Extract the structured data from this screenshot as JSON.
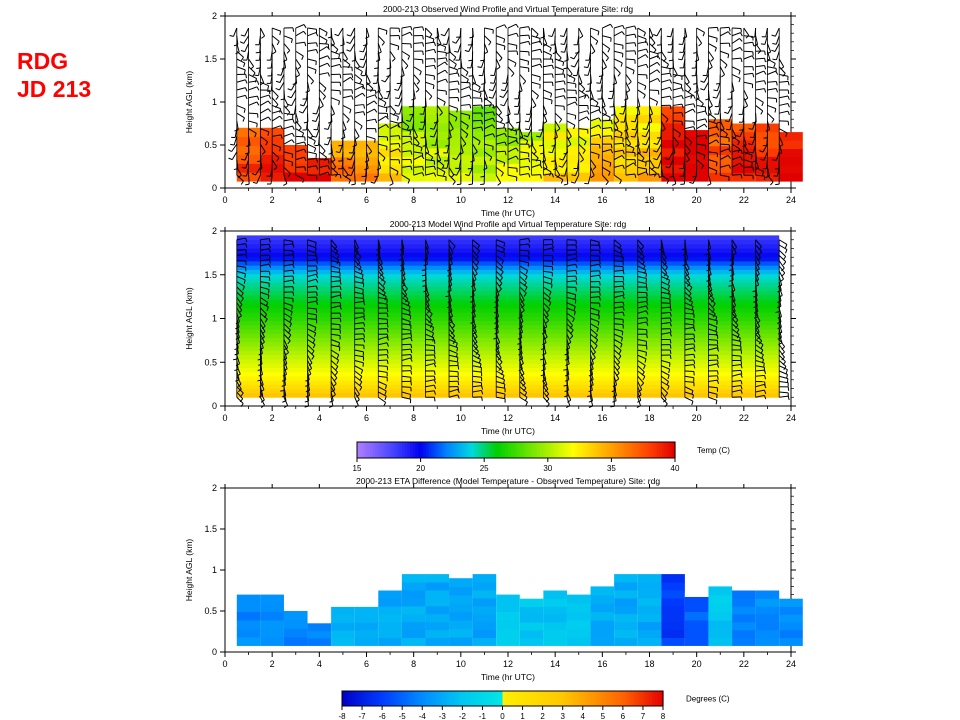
{
  "site_label": {
    "line1": "RDG",
    "line2": "JD 213"
  },
  "chart_data": [
    {
      "type": "heatmap",
      "title": "2000-213  Observed Wind Profile and Virtual Temperature   Site: rdg",
      "xlabel": "Time (hr UTC)",
      "ylabel": "Height AGL (km)",
      "xlim": [
        0,
        24
      ],
      "ylim": [
        0,
        2
      ],
      "x_ticks": [
        "0",
        "2",
        "4",
        "6",
        "8",
        "10",
        "12",
        "14",
        "16",
        "18",
        "20",
        "22",
        "24"
      ],
      "y_ticks": [
        "0",
        "0.5",
        "1",
        "1.5",
        "2"
      ],
      "overlay": "wind barbs",
      "tops_km": [
        0.7,
        0.7,
        0.5,
        0.35,
        0.55,
        0.55,
        0.75,
        0.95,
        0.95,
        0.9,
        0.95,
        0.7,
        0.65,
        0.75,
        0.7,
        0.8,
        0.95,
        0.95,
        0.95,
        0.7,
        0.8,
        0.75,
        0.75,
        0.65
      ],
      "temp_c": [
        36,
        37,
        37,
        38,
        34,
        33,
        31,
        29,
        29,
        29,
        28,
        29,
        30,
        31,
        31,
        32,
        32,
        32,
        38,
        39,
        36,
        37,
        37,
        38
      ]
    },
    {
      "type": "heatmap",
      "title": "2000-213  Model Wind Profile and Virtual Temperature   Site: rdg",
      "xlabel": "Time (hr UTC)",
      "ylabel": "Height AGL (km)",
      "xlim": [
        0,
        24
      ],
      "ylim": [
        0,
        2
      ],
      "x_ticks": [
        "0",
        "2",
        "4",
        "6",
        "8",
        "10",
        "12",
        "14",
        "16",
        "18",
        "20",
        "22",
        "24"
      ],
      "y_ticks": [
        "0",
        "0.5",
        "1",
        "1.5",
        "2"
      ],
      "overlay": "wind barbs",
      "temp_by_height": [
        [
          0.1,
          34
        ],
        [
          0.5,
          31
        ],
        [
          1.0,
          27
        ],
        [
          1.5,
          24
        ],
        [
          1.7,
          20
        ],
        [
          1.95,
          18
        ]
      ]
    },
    {
      "type": "colorbar",
      "label": "Temp (C)",
      "range": [
        15,
        40
      ],
      "ticks": [
        "15",
        "20",
        "25",
        "30",
        "35",
        "40"
      ]
    },
    {
      "type": "heatmap",
      "title": "2000-213  ETA  Difference (Model Temperature - Observed Temperature)  Site: rdg",
      "xlabel": "Time (hr UTC)",
      "ylabel": "Height AGL (km)",
      "xlim": [
        0,
        24
      ],
      "ylim": [
        0,
        2
      ],
      "x_ticks": [
        "0",
        "2",
        "4",
        "6",
        "8",
        "10",
        "12",
        "14",
        "16",
        "18",
        "20",
        "22",
        "24"
      ],
      "y_ticks": [
        "0",
        "0.5",
        "1",
        "1.5",
        "2"
      ],
      "diff_c": [
        -4,
        -4,
        -4,
        -4,
        -3,
        -3,
        -3,
        -3,
        -3,
        -3,
        -3,
        -2,
        -2,
        -2,
        -2,
        -3,
        -3,
        -3,
        -6,
        -5,
        -2,
        -4,
        -4,
        -4
      ]
    },
    {
      "type": "colorbar",
      "label": "Degrees (C)",
      "range": [
        -8,
        8
      ],
      "ticks": [
        "-8",
        "-7",
        "-6",
        "-5",
        "-4",
        "-3",
        "-2",
        "-1",
        "0",
        "1",
        "2",
        "3",
        "4",
        "5",
        "6",
        "7",
        "8"
      ]
    }
  ]
}
